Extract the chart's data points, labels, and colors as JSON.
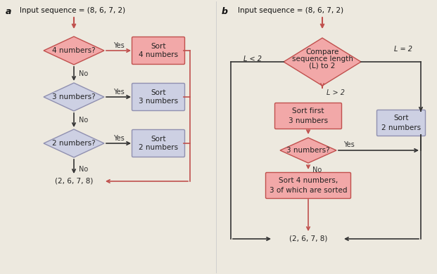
{
  "bg_color": "#ede9df",
  "pink_fill": "#f2a8a8",
  "pink_border": "#c0504d",
  "pink_box_fill": "#f2a8a8",
  "blue_fill": "#cdd0e3",
  "blue_border": "#9090b0",
  "blue_box_fill": "#cdd0e3",
  "text_color": "#222222",
  "arrow_pink": "#c0504d",
  "arrow_black": "#333333",
  "title_a": "Input sequence = (8, 6, 7, 2)",
  "title_b": "Input sequence = (8, 6, 7, 2)",
  "label_a": "a",
  "label_b": "b",
  "output_text": "(2, 6, 7, 8)"
}
